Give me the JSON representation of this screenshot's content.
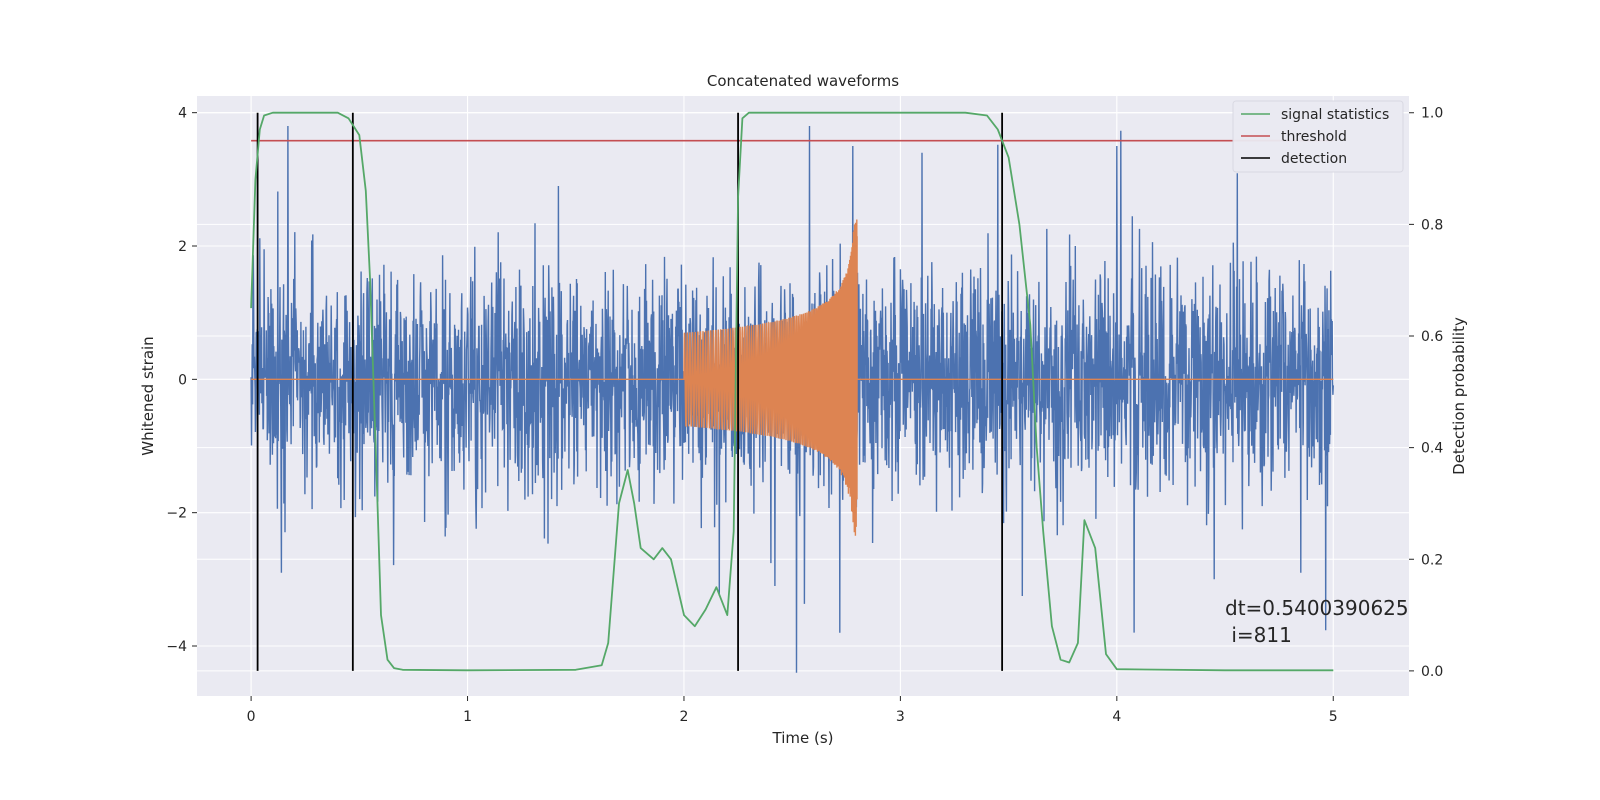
{
  "chart_data": {
    "type": "line",
    "title": "Concatenated waveforms",
    "xlabel": "Time (s)",
    "ylabel_left": "Whitened strain",
    "ylabel_right": "Detection probability",
    "xlim": [
      -0.25,
      5.35
    ],
    "ylim_left": [
      -4.75,
      4.25
    ],
    "ylim_right": [
      -0.045,
      1.03
    ],
    "xticks": [
      0,
      1,
      2,
      3,
      4,
      5
    ],
    "xtick_labels": [
      "0",
      "1",
      "2",
      "3",
      "4",
      "5"
    ],
    "yticks_left": [
      -4,
      -2,
      0,
      2,
      4
    ],
    "ytick_labels_left": [
      "−4",
      "−2",
      "0",
      "2",
      "4"
    ],
    "yticks_right": [
      0.0,
      0.2,
      0.4,
      0.6,
      0.8,
      1.0
    ],
    "ytick_labels_right": [
      "0.0",
      "0.2",
      "0.4",
      "0.6",
      "0.8",
      "1.0"
    ],
    "grid": true,
    "legend_position": "top-right",
    "colors": {
      "background": "#eaeaf2",
      "grid": "#ffffff",
      "noise": "#4c72b0",
      "template": "#dd8452",
      "statistic": "#55a868",
      "threshold": "#c44e52",
      "detection": "#000000"
    },
    "noise_series": {
      "x_range": [
        0,
        5
      ],
      "typical_range": [
        -1.3,
        1.3
      ],
      "extreme_range": [
        -4.4,
        3.8
      ],
      "spike_points": [
        {
          "x": 0.17,
          "y": 3.8
        },
        {
          "x": 0.14,
          "y": -2.9
        },
        {
          "x": 1.42,
          "y": 2.9
        },
        {
          "x": 2.42,
          "y": -3.1
        },
        {
          "x": 2.52,
          "y": -4.4
        },
        {
          "x": 2.58,
          "y": 3.8
        },
        {
          "x": 2.78,
          "y": 3.5
        },
        {
          "x": 2.72,
          "y": -3.8
        },
        {
          "x": 3.1,
          "y": 3.4
        },
        {
          "x": 4.0,
          "y": 3.5
        },
        {
          "x": 4.45,
          "y": -3.0
        },
        {
          "x": 4.85,
          "y": -2.9
        }
      ]
    },
    "template_series": {
      "x_start": 2.0,
      "x_end": 2.8,
      "envelope_start": 0.7,
      "envelope_peak_upper": 2.4,
      "envelope_peak_lower": -2.4
    },
    "statistic_series": {
      "x": [
        0.0,
        0.02,
        0.04,
        0.06,
        0.1,
        0.15,
        0.3,
        0.4,
        0.45,
        0.5,
        0.53,
        0.55,
        0.58,
        0.6,
        0.63,
        0.66,
        0.7,
        1.0,
        1.5,
        1.62,
        1.65,
        1.7,
        1.74,
        1.77,
        1.8,
        1.86,
        1.9,
        1.94,
        2.0,
        2.05,
        2.1,
        2.15,
        2.2,
        2.23,
        2.25,
        2.27,
        2.3,
        2.4,
        3.0,
        3.3,
        3.4,
        3.45,
        3.5,
        3.55,
        3.6,
        3.63,
        3.66,
        3.7,
        3.74,
        3.78,
        3.82,
        3.85,
        3.9,
        3.95,
        4.0,
        4.5,
        5.0
      ],
      "y": [
        0.65,
        0.88,
        0.97,
        0.995,
        1.0,
        1.0,
        1.0,
        1.0,
        0.99,
        0.96,
        0.86,
        0.7,
        0.35,
        0.1,
        0.02,
        0.005,
        0.002,
        0.001,
        0.002,
        0.01,
        0.05,
        0.3,
        0.36,
        0.3,
        0.22,
        0.2,
        0.22,
        0.2,
        0.1,
        0.08,
        0.11,
        0.15,
        0.1,
        0.25,
        0.85,
        0.99,
        1.0,
        1.0,
        1.0,
        1.0,
        0.995,
        0.97,
        0.92,
        0.8,
        0.62,
        0.4,
        0.25,
        0.08,
        0.02,
        0.015,
        0.05,
        0.27,
        0.22,
        0.03,
        0.003,
        0.001,
        0.001
      ]
    },
    "threshold": {
      "value": 0.95,
      "x_range": [
        0,
        5
      ]
    },
    "detections": [
      0.03,
      0.47,
      2.25,
      3.47
    ],
    "detection_y_range": [
      0.0,
      1.0
    ],
    "legend": [
      "signal statistics",
      "threshold",
      "detection"
    ],
    "annotation": {
      "line1": "dt=0.5400390625",
      "line2": " i=811",
      "x": 4.5,
      "y": -3.45
    }
  }
}
